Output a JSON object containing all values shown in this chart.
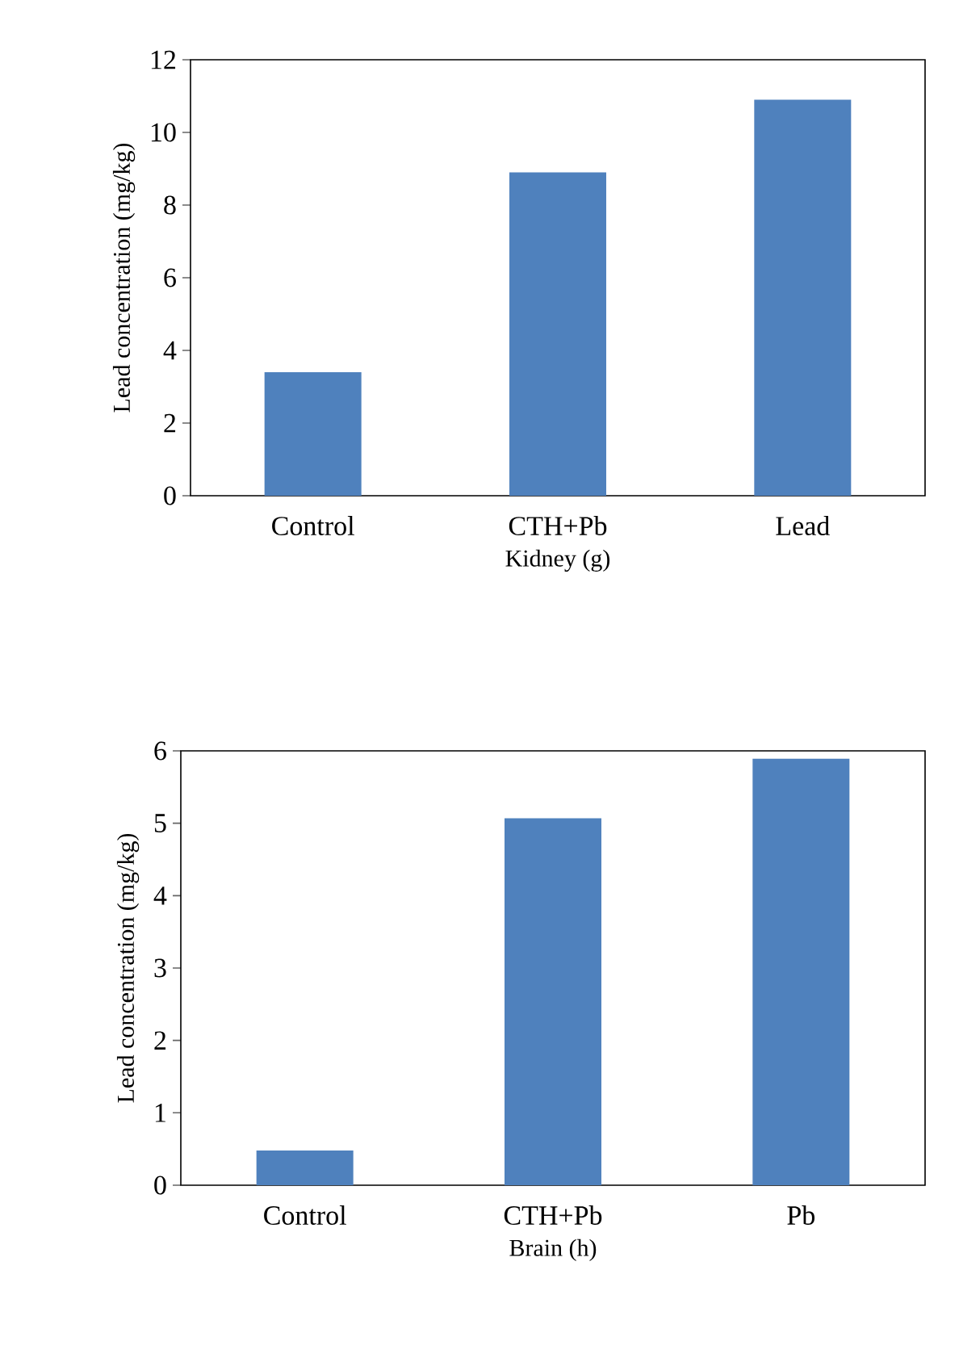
{
  "chart_data": [
    {
      "type": "bar",
      "xlabel": "Kidney (g)",
      "ylabel": "Lead concentration (mg/kg)",
      "categories": [
        "Control",
        "CTH+Pb",
        "Lead"
      ],
      "values": [
        3.4,
        8.9,
        10.9
      ],
      "color": "#4f81bd",
      "ylim": [
        0,
        12
      ],
      "yticks": [
        0,
        2,
        4,
        6,
        8,
        10,
        12
      ]
    },
    {
      "type": "bar",
      "xlabel": "Brain (h)",
      "ylabel": "Lead concentration (mg/kg)",
      "categories": [
        "Control",
        "CTH+Pb",
        "Pb"
      ],
      "values": [
        0.48,
        5.07,
        5.89
      ],
      "color": "#4f81bd",
      "ylim": [
        0,
        6
      ],
      "yticks": [
        0,
        1,
        2,
        3,
        4,
        5,
        6
      ]
    }
  ]
}
